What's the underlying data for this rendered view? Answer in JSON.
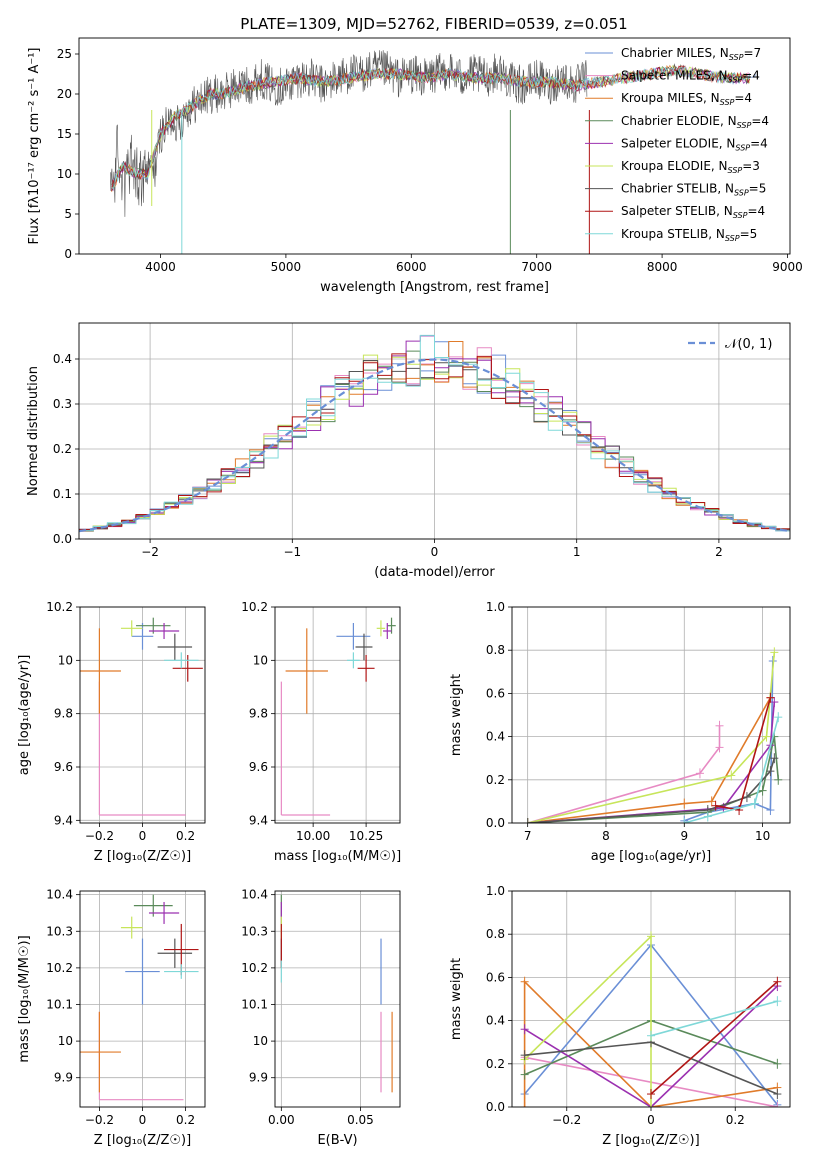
{
  "title": "PLATE=1309, MJD=52762, FIBERID=0539, z=0.051",
  "colors": {
    "Chabrier MILES": "#6a8fd6",
    "Salpeter MILES": "#e78ac3",
    "Kroupa MILES": "#e07b2a",
    "Chabrier ELODIE": "#5a8a5a",
    "Salpeter ELODIE": "#9b30b0",
    "Kroupa ELODIE": "#c7e55a",
    "Chabrier STELIB": "#555555",
    "Salpeter STELIB": "#b01515",
    "Kroupa STELIB": "#7fd8d8"
  },
  "legend_models": [
    {
      "name": "Chabrier MILES",
      "nssp": "7"
    },
    {
      "name": "Salpeter MILES",
      "nssp": "4"
    },
    {
      "name": "Kroupa MILES",
      "nssp": "4"
    },
    {
      "name": "Chabrier ELODIE",
      "nssp": "4"
    },
    {
      "name": "Salpeter ELODIE",
      "nssp": "4"
    },
    {
      "name": "Kroupa ELODIE",
      "nssp": "3"
    },
    {
      "name": "Chabrier STELIB",
      "nssp": "5"
    },
    {
      "name": "Salpeter STELIB",
      "nssp": "4"
    },
    {
      "name": "Kroupa STELIB",
      "nssp": "5"
    }
  ],
  "chart_data": [
    {
      "id": "spectrum",
      "type": "line",
      "xlabel": "wavelength [Angstrom, rest frame]",
      "ylabel": "Flux [fλ10⁻¹⁷ erg cm⁻² s⁻¹ A⁻¹]",
      "xlim": [
        3350,
        9020
      ],
      "ylim": [
        0,
        27
      ],
      "xticks": [
        4000,
        5000,
        6000,
        7000,
        8000,
        9000
      ],
      "yticks": [
        0,
        5,
        10,
        15,
        20,
        25
      ],
      "grid": false,
      "legend": "top-right",
      "data_x": [
        3600,
        3650,
        3700,
        3750,
        3800,
        3850,
        3900,
        3950,
        4000,
        4050,
        4100,
        4150,
        4200,
        4300,
        4400,
        4500,
        4600,
        4700,
        4800,
        4900,
        5000,
        5100,
        5200,
        5300,
        5400,
        5500,
        5600,
        5700,
        5800,
        5900,
        6000,
        6100,
        6200,
        6300,
        6400,
        6500,
        6600,
        6700,
        6800,
        6900,
        7000,
        7100,
        7200,
        7300,
        7400
      ],
      "data_y": [
        8,
        12,
        9,
        11,
        10,
        9,
        11,
        10,
        15,
        16,
        17,
        16,
        18,
        19,
        20,
        20,
        21,
        21,
        22,
        21,
        21,
        22,
        22,
        21,
        22,
        22.5,
        22.5,
        23,
        23,
        22,
        22.5,
        22,
        22.5,
        23,
        22,
        22.5,
        22,
        23,
        21.5,
        21,
        22,
        21,
        22,
        21,
        22
      ],
      "model_x": [
        3600,
        3700,
        3800,
        3900,
        4000,
        4100,
        4200,
        4300,
        4400,
        4500,
        4700,
        4900,
        5100,
        5300,
        5500,
        5700,
        5900,
        6100,
        6300,
        6500,
        6700,
        6900,
        7100,
        7300,
        7500,
        7700,
        7900,
        8100,
        8300,
        8500,
        8700
      ],
      "model_y": [
        8,
        11,
        10,
        10,
        15,
        17,
        18,
        19,
        20,
        20,
        21,
        21.5,
        22,
        21.5,
        22,
        22.5,
        22.5,
        22,
        22.5,
        22,
        22,
        21.5,
        21.5,
        21,
        21.5,
        22,
        22.5,
        23,
        22.5,
        22,
        22
      ]
    },
    {
      "id": "residuals",
      "type": "bar",
      "xlabel": "(data-model)/error",
      "ylabel": "Normed distribution",
      "xlim": [
        -2.5,
        2.5
      ],
      "ylim": [
        0,
        0.48
      ],
      "xticks": [
        -2,
        -1,
        0,
        1,
        2
      ],
      "yticks": [
        0.0,
        0.1,
        0.2,
        0.3,
        0.4
      ],
      "grid": true,
      "legend": "top-right",
      "bin_width": 0.1,
      "bins_start": -2.5,
      "reference": {
        "label": "𝒩(0, 1)",
        "mean": 0,
        "sigma": 1
      }
    },
    {
      "id": "age_vs_z",
      "type": "scatter",
      "xlabel": "Z [log₁₀(Z/Z☉)]",
      "ylabel": "age  [log₁₀(age/yr)]",
      "xlim": [
        -0.29,
        0.29
      ],
      "ylim": [
        9.39,
        10.2
      ],
      "xticks": [
        -0.2,
        0.0,
        0.2
      ],
      "yticks": [
        9.4,
        9.6,
        9.8,
        10.0,
        10.2
      ],
      "grid": true,
      "points": [
        {
          "model": "Chabrier MILES",
          "x": 0.0,
          "y": 10.09,
          "xerr": 0.05,
          "yerr": 0.05
        },
        {
          "model": "Salpeter MILES",
          "x": -0.2,
          "y": 9.42,
          "xerr": [
            0,
            0.4
          ],
          "yerr": [
            0,
            0.5
          ]
        },
        {
          "model": "Kroupa MILES",
          "x": -0.2,
          "y": 9.96,
          "xerr": 0.1,
          "yerr": 0.16
        },
        {
          "model": "Chabrier ELODIE",
          "x": 0.05,
          "y": 10.13,
          "xerr": 0.08,
          "yerr": 0.03
        },
        {
          "model": "Salpeter ELODIE",
          "x": 0.1,
          "y": 10.11,
          "xerr": 0.07,
          "yerr": 0.03
        },
        {
          "model": "Kroupa ELODIE",
          "x": -0.05,
          "y": 10.12,
          "xerr": 0.05,
          "yerr": 0.03
        },
        {
          "model": "Chabrier STELIB",
          "x": 0.15,
          "y": 10.05,
          "xerr": 0.08,
          "yerr": 0.05
        },
        {
          "model": "Salpeter STELIB",
          "x": 0.21,
          "y": 9.97,
          "xerr": 0.07,
          "yerr": 0.05
        },
        {
          "model": "Kroupa STELIB",
          "x": 0.18,
          "y": 10.0,
          "xerr": 0.08,
          "yerr": 0.03
        }
      ]
    },
    {
      "id": "age_vs_mass",
      "type": "scatter",
      "xlabel": "mass [log₁₀(M/M☉)]",
      "ylabel": "",
      "xlim": [
        9.82,
        10.41
      ],
      "ylim": [
        9.39,
        10.2
      ],
      "xticks": [
        10.0,
        10.25
      ],
      "xtick_labels": [
        "10.00",
        "10.25"
      ],
      "yticks": [
        9.4,
        9.6,
        9.8,
        10.0,
        10.2
      ],
      "grid": true,
      "points": [
        {
          "model": "Chabrier MILES",
          "x": 10.19,
          "y": 10.09,
          "xerr": 0.08,
          "yerr": 0.05
        },
        {
          "model": "Salpeter MILES",
          "x": 9.85,
          "y": 9.42,
          "xerr": [
            0,
            0.23
          ],
          "yerr": [
            0,
            0.5
          ]
        },
        {
          "model": "Kroupa MILES",
          "x": 9.97,
          "y": 9.96,
          "xerr": 0.1,
          "yerr": 0.16
        },
        {
          "model": "Chabrier ELODIE",
          "x": 10.37,
          "y": 10.13,
          "xerr": 0.02,
          "yerr": 0.03
        },
        {
          "model": "Salpeter ELODIE",
          "x": 10.35,
          "y": 10.11,
          "xerr": 0.02,
          "yerr": 0.03
        },
        {
          "model": "Kroupa ELODIE",
          "x": 10.32,
          "y": 10.12,
          "xerr": 0.02,
          "yerr": 0.03
        },
        {
          "model": "Chabrier STELIB",
          "x": 10.24,
          "y": 10.05,
          "xerr": 0.04,
          "yerr": 0.05
        },
        {
          "model": "Salpeter STELIB",
          "x": 10.25,
          "y": 9.97,
          "xerr": 0.04,
          "yerr": 0.05
        },
        {
          "model": "Kroupa STELIB",
          "x": 10.19,
          "y": 10.0,
          "xerr": 0.03,
          "yerr": 0.03
        }
      ]
    },
    {
      "id": "weight_vs_age",
      "type": "line",
      "xlabel": "age  [log₁₀(age/yr)]",
      "ylabel": "mass weight",
      "xlim": [
        6.8,
        10.35
      ],
      "ylim": [
        0,
        1
      ],
      "xticks": [
        7,
        8,
        9,
        10
      ],
      "yticks": [
        0.0,
        0.2,
        0.4,
        0.6,
        0.8,
        1.0
      ],
      "grid": true,
      "series": [
        {
          "model": "Chabrier MILES",
          "x": [
            9.0,
            9.3,
            9.9,
            10.1,
            10.13
          ],
          "y": [
            0.01,
            0.05,
            0.09,
            0.06,
            0.75
          ]
        },
        {
          "model": "Salpeter MILES",
          "x": [
            7.0,
            9.2,
            9.45,
            9.45
          ],
          "y": [
            0.0,
            0.23,
            0.35,
            0.45
          ]
        },
        {
          "model": "Kroupa MILES",
          "x": [
            7.0,
            9.0,
            9.35,
            10.1
          ],
          "y": [
            0.0,
            0.09,
            0.1,
            0.58
          ]
        },
        {
          "model": "Chabrier ELODIE",
          "x": [
            7.0,
            9.3,
            10.0,
            10.15,
            10.2
          ],
          "y": [
            0.0,
            0.05,
            0.15,
            0.4,
            0.2
          ]
        },
        {
          "model": "Salpeter ELODIE",
          "x": [
            7.0,
            9.5,
            10.1,
            10.15
          ],
          "y": [
            0.0,
            0.07,
            0.36,
            0.56
          ]
        },
        {
          "model": "Kroupa ELODIE",
          "x": [
            7.0,
            9.6,
            10.05,
            10.15
          ],
          "y": [
            0.0,
            0.22,
            0.4,
            0.79
          ]
        },
        {
          "model": "Chabrier STELIB",
          "x": [
            7.0,
            9.3,
            9.8,
            10.1,
            10.15
          ],
          "y": [
            0.0,
            0.06,
            0.12,
            0.24,
            0.3
          ]
        },
        {
          "model": "Salpeter STELIB",
          "x": [
            9.4,
            9.7,
            10.1
          ],
          "y": [
            0.08,
            0.06,
            0.58
          ]
        },
        {
          "model": "Kroupa STELIB",
          "x": [
            9.0,
            9.3,
            9.9,
            10.2
          ],
          "y": [
            0.0,
            0.03,
            0.09,
            0.49
          ]
        }
      ]
    },
    {
      "id": "mass_vs_z",
      "type": "scatter",
      "xlabel": "Z [log₁₀(Z/Z☉)]",
      "ylabel": "mass [log₁₀(M/M☉)]",
      "xlim": [
        -0.29,
        0.29
      ],
      "ylim": [
        9.82,
        10.41
      ],
      "xticks": [
        -0.2,
        0.0,
        0.2
      ],
      "yticks": [
        9.9,
        10.0,
        10.1,
        10.2,
        10.3,
        10.4
      ],
      "grid": true,
      "points": [
        {
          "model": "Chabrier MILES",
          "x": 0.0,
          "y": 10.19,
          "xerr": 0.08,
          "yerr": 0.09
        },
        {
          "model": "Salpeter MILES",
          "x": -0.2,
          "y": 9.84,
          "xerr": [
            0,
            0.39
          ],
          "yerr": [
            0,
            0.24
          ]
        },
        {
          "model": "Kroupa MILES",
          "x": -0.2,
          "y": 9.97,
          "xerr": 0.1,
          "yerr": 0.11
        },
        {
          "model": "Chabrier ELODIE",
          "x": 0.05,
          "y": 10.37,
          "xerr": 0.09,
          "yerr": 0.03
        },
        {
          "model": "Salpeter ELODIE",
          "x": 0.1,
          "y": 10.35,
          "xerr": 0.07,
          "yerr": 0.03
        },
        {
          "model": "Kroupa ELODIE",
          "x": -0.05,
          "y": 10.31,
          "xerr": 0.05,
          "yerr": 0.03
        },
        {
          "model": "Chabrier STELIB",
          "x": 0.15,
          "y": 10.24,
          "xerr": 0.08,
          "yerr": 0.04
        },
        {
          "model": "Salpeter STELIB",
          "x": 0.18,
          "y": 10.25,
          "xerr": 0.08,
          "yerr": 0.07
        },
        {
          "model": "Kroupa STELIB",
          "x": 0.18,
          "y": 10.19,
          "xerr": 0.08,
          "yerr": 0.02
        }
      ]
    },
    {
      "id": "mass_vs_ebv",
      "type": "scatter",
      "xlabel": "E(B-V)",
      "ylabel": "",
      "xlim": [
        -0.004,
        0.075
      ],
      "ylim": [
        9.82,
        10.41
      ],
      "xticks": [
        0.0,
        0.05
      ],
      "xtick_labels": [
        "0.00",
        "0.05"
      ],
      "yticks": [
        9.9,
        10.0,
        10.1,
        10.2,
        10.3,
        10.4
      ],
      "grid": true,
      "points": [
        {
          "model": "Chabrier MILES",
          "x": 0.063,
          "y": 10.19,
          "yerr": 0.09
        },
        {
          "model": "Salpeter MILES",
          "x": 0.063,
          "y": 9.97,
          "yerr": 0.11
        },
        {
          "model": "Kroupa MILES",
          "x": 0.07,
          "y": 9.97,
          "yerr": 0.11
        },
        {
          "model": "Chabrier ELODIE",
          "x": 0.0,
          "y": 10.37,
          "yerr": 0.03
        },
        {
          "model": "Salpeter ELODIE",
          "x": 0.0,
          "y": 10.35,
          "yerr": 0.03
        },
        {
          "model": "Kroupa ELODIE",
          "x": 0.0,
          "y": 10.31,
          "yerr": 0.03
        },
        {
          "model": "Chabrier STELIB",
          "x": 0.0,
          "y": 10.24,
          "yerr": 0.04
        },
        {
          "model": "Salpeter STELIB",
          "x": 0.0,
          "y": 10.26,
          "yerr": 0.06
        },
        {
          "model": "Kroupa STELIB",
          "x": 0.0,
          "y": 10.19,
          "yerr": 0.03
        }
      ]
    },
    {
      "id": "weight_vs_z",
      "type": "line",
      "xlabel": "Z [log₁₀(Z/Z☉)]",
      "ylabel": "mass weight",
      "xlim": [
        -0.33,
        0.33
      ],
      "ylim": [
        0,
        1
      ],
      "xticks": [
        -0.2,
        0.0,
        0.2
      ],
      "yticks": [
        0.0,
        0.2,
        0.4,
        0.6,
        0.8,
        1.0
      ],
      "grid": true,
      "series": [
        {
          "model": "Chabrier MILES",
          "x": [
            -0.3,
            0.0,
            0.3
          ],
          "y": [
            0.06,
            0.75,
            0.01
          ]
        },
        {
          "model": "Salpeter MILES",
          "x": [
            -0.3,
            0.3
          ],
          "y": [
            0.23,
            0.0
          ]
        },
        {
          "model": "Kroupa MILES",
          "x": [
            -0.3,
            -0.3,
            0.0,
            0.3
          ],
          "y": [
            0.0,
            0.58,
            0.0,
            0.09
          ]
        },
        {
          "model": "Chabrier ELODIE",
          "x": [
            -0.3,
            0.0,
            0.3
          ],
          "y": [
            0.15,
            0.4,
            0.2
          ]
        },
        {
          "model": "Salpeter ELODIE",
          "x": [
            -0.3,
            0.0,
            0.3
          ],
          "y": [
            0.36,
            0.0,
            0.56
          ]
        },
        {
          "model": "Kroupa ELODIE",
          "x": [
            -0.3,
            0.0,
            0.0
          ],
          "y": [
            0.22,
            0.79,
            0.0
          ]
        },
        {
          "model": "Chabrier STELIB",
          "x": [
            -0.3,
            0.0,
            0.3
          ],
          "y": [
            0.24,
            0.3,
            0.06
          ]
        },
        {
          "model": "Salpeter STELIB",
          "x": [
            0.0,
            0.3
          ],
          "y": [
            0.06,
            0.58
          ]
        },
        {
          "model": "Kroupa STELIB",
          "x": [
            0.0,
            0.3
          ],
          "y": [
            0.33,
            0.49
          ]
        }
      ]
    }
  ]
}
